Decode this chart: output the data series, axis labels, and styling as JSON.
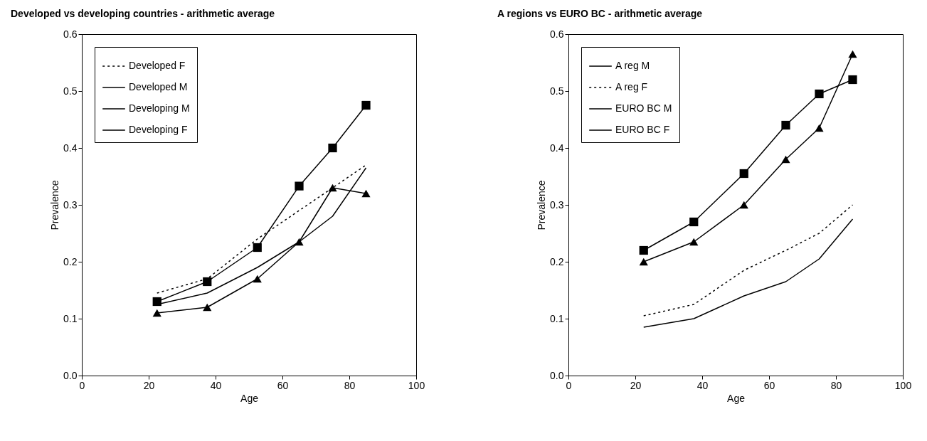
{
  "chart_data": [
    {
      "type": "line",
      "title": "Developed vs developing countries - arithmetic average",
      "xlabel": "Age",
      "ylabel": "Prevalence",
      "xlim": [
        0,
        100
      ],
      "xticks": [
        0,
        20,
        40,
        60,
        80,
        100
      ],
      "ylim": [
        0,
        0.6
      ],
      "yticks": [
        {
          "value": 0,
          "label": "0.0"
        },
        0.1,
        0.2,
        0.3,
        0.4,
        0.5,
        0.6
      ],
      "grid": false,
      "legend": "top left",
      "x": [
        22.5,
        37.5,
        52.5,
        65,
        75,
        85
      ],
      "series": [
        {
          "name": "Developed F",
          "color": "#000000",
          "line_style": "dotted",
          "marker": "none",
          "values": [
            0.145,
            0.17,
            0.24,
            0.29,
            0.33,
            0.37
          ]
        },
        {
          "name": "Developed M",
          "color": "#000000",
          "line_style": "solid",
          "marker": "none",
          "values": [
            0.125,
            0.145,
            0.19,
            0.235,
            0.28,
            0.365
          ]
        },
        {
          "name": "Developing M",
          "color": "#000000",
          "line_style": "solid",
          "marker": "triangle",
          "values": [
            0.11,
            0.12,
            0.17,
            0.235,
            0.33,
            0.32
          ]
        },
        {
          "name": "Developing F",
          "color": "#000000",
          "line_style": "solid",
          "marker": "square",
          "values": [
            0.13,
            0.165,
            0.225,
            0.333,
            0.4,
            0.475
          ]
        }
      ]
    },
    {
      "type": "line",
      "title": "A regions vs EURO BC - arithmetic average",
      "xlabel": "Age",
      "ylabel": "Prevalence",
      "xlim": [
        0,
        100
      ],
      "xticks": [
        0,
        20,
        40,
        60,
        80,
        100
      ],
      "ylim": [
        0,
        0.6
      ],
      "yticks": [
        {
          "value": 0,
          "label": "0.0"
        },
        0.1,
        0.2,
        0.3,
        0.4,
        0.5,
        0.6
      ],
      "grid": false,
      "legend": "top left",
      "x": [
        22.5,
        37.5,
        52.5,
        65,
        75,
        85
      ],
      "series": [
        {
          "name": "A reg M",
          "color": "#000000",
          "line_style": "solid",
          "marker": "none",
          "values": [
            0.085,
            0.1,
            0.14,
            0.165,
            0.205,
            0.275
          ]
        },
        {
          "name": "A reg F",
          "color": "#000000",
          "line_style": "dotted",
          "marker": "none",
          "values": [
            0.105,
            0.125,
            0.185,
            0.22,
            0.25,
            0.3
          ]
        },
        {
          "name": "EURO BC M",
          "color": "#000000",
          "line_style": "solid",
          "marker": "triangle",
          "values": [
            0.2,
            0.235,
            0.3,
            0.38,
            0.435,
            0.565
          ]
        },
        {
          "name": "EURO BC F",
          "color": "#000000",
          "line_style": "solid",
          "marker": "square",
          "values": [
            0.22,
            0.27,
            0.355,
            0.44,
            0.495,
            0.52
          ]
        }
      ]
    }
  ]
}
